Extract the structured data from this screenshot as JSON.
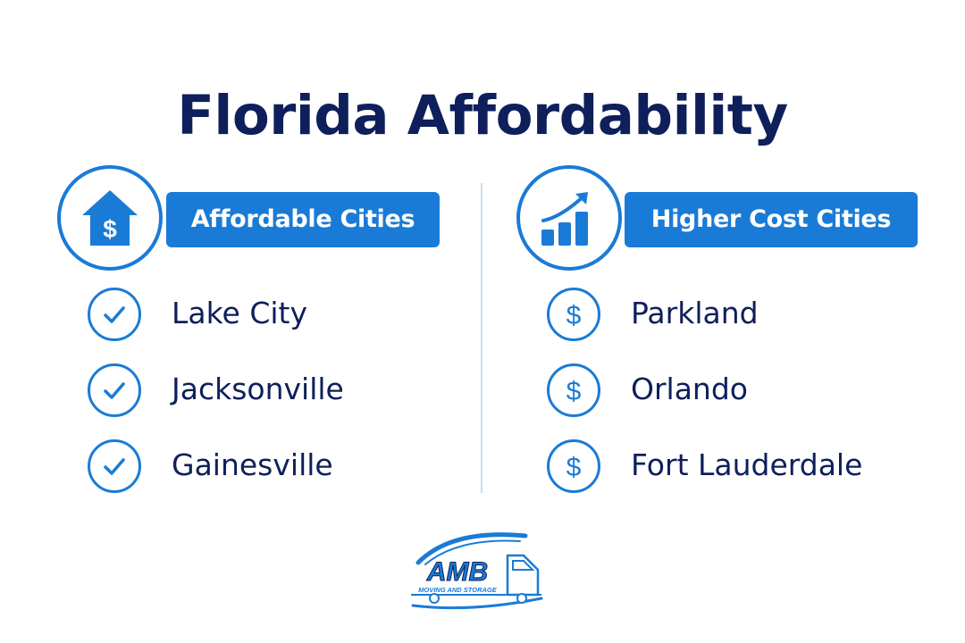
{
  "title": "Florida Affordability",
  "left_column": {
    "category_label": "Affordable Cities",
    "hero_icon": "house-dollar-icon",
    "item_icon": "checkmark-circle-icon",
    "cities": [
      "Lake City",
      "Jacksonville",
      "Gainesville"
    ]
  },
  "right_column": {
    "category_label": "Higher Cost Cities",
    "hero_icon": "rising-bar-chart-icon",
    "item_icon": "dollar-circle-icon",
    "cities": [
      "Parkland",
      "Orlando",
      "Fort Lauderdale"
    ]
  },
  "logo": {
    "brand": "AMB",
    "tagline": "MOVING AND STORAGE",
    "icon": "moving-truck-swoosh-logo"
  },
  "colors": {
    "title": "#0e1f5b",
    "accent": "#1a7bd6",
    "divider": "#c7ddf1",
    "background": "#ffffff"
  }
}
